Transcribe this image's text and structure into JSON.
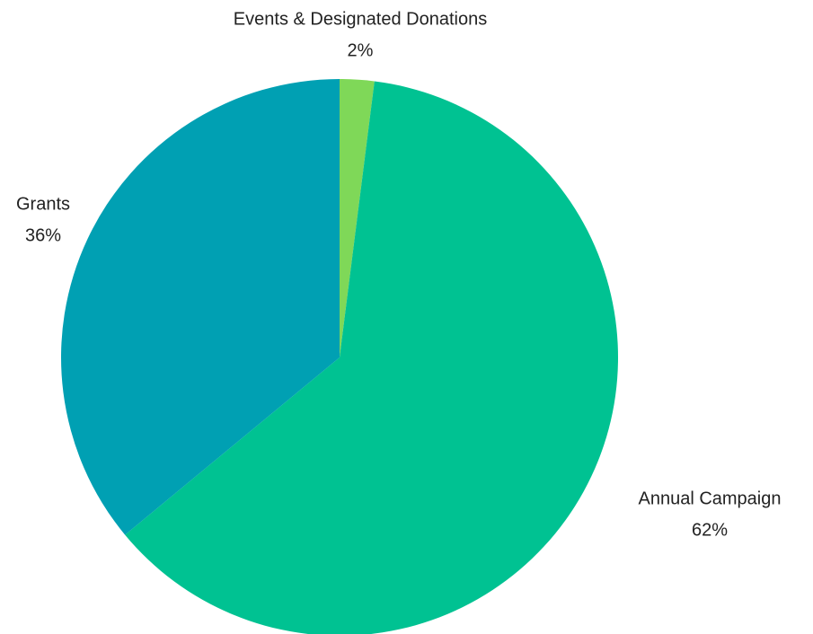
{
  "chart_data": {
    "type": "pie",
    "title": "",
    "legend": "none",
    "start_angle_deg": 0,
    "direction": "clockwise",
    "slices": [
      {
        "name": "Events & Designated Donations",
        "value": 2,
        "label": "2%",
        "color": "#7fd858"
      },
      {
        "name": "Annual Campaign",
        "value": 62,
        "label": "62%",
        "color": "#00c292"
      },
      {
        "name": "Grants",
        "value": 36,
        "label": "36%",
        "color": "#00a0b3"
      }
    ]
  }
}
